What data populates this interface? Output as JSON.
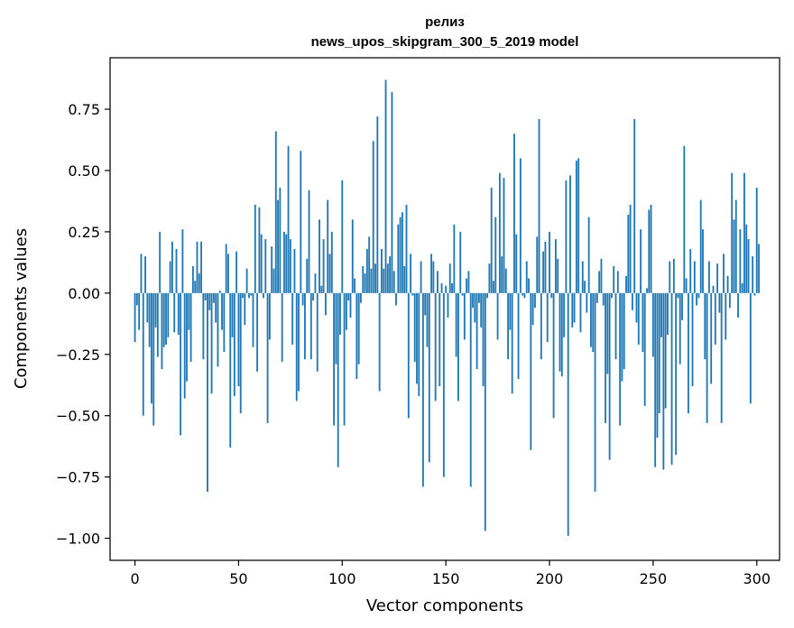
{
  "colors": {
    "bar": "#1f77b4",
    "axis": "#000000",
    "background": "#ffffff"
  },
  "chart_data": {
    "type": "bar",
    "title_line1": "релиз",
    "title_line2": "news_upos_skipgram_300_5_2019 model",
    "xlabel": "Vector components",
    "ylabel": "Components values",
    "xlim": [
      -12,
      311
    ],
    "ylim": [
      -1.09,
      0.96
    ],
    "grid": false,
    "xticks": [
      0,
      50,
      100,
      150,
      200,
      250,
      300
    ],
    "xtick_labels": [
      "0",
      "50",
      "100",
      "150",
      "200",
      "250",
      "300"
    ],
    "yticks": [
      -1.0,
      -0.75,
      -0.5,
      -0.25,
      0.0,
      0.25,
      0.5,
      0.75
    ],
    "ytick_labels": [
      "−1.00",
      "−0.75",
      "−0.50",
      "−0.25",
      "0.00",
      "0.25",
      "0.50",
      "0.75"
    ],
    "values": [
      -0.2,
      -0.05,
      -0.15,
      0.16,
      -0.5,
      0.15,
      -0.12,
      -0.22,
      -0.45,
      -0.54,
      -0.14,
      -0.26,
      0.25,
      -0.31,
      -0.22,
      -0.21,
      -0.18,
      0.13,
      0.21,
      -0.16,
      0.18,
      -0.17,
      -0.58,
      0.26,
      -0.43,
      -0.36,
      -0.15,
      -0.28,
      0.11,
      0.05,
      0.21,
      0.08,
      0.21,
      -0.27,
      -0.03,
      -0.81,
      -0.07,
      -0.41,
      -0.04,
      -0.12,
      -0.3,
      0.01,
      -0.15,
      -0.24,
      0.2,
      0.16,
      -0.63,
      -0.18,
      -0.42,
      0.17,
      -0.38,
      -0.49,
      -0.02,
      -0.13,
      0.1,
      -0.02,
      -0.01,
      -0.22,
      0.36,
      -0.32,
      0.35,
      0.24,
      -0.02,
      0.22,
      -0.53,
      -0.19,
      0.19,
      0.1,
      0.66,
      0.38,
      0.43,
      -0.28,
      0.25,
      0.24,
      0.6,
      0.22,
      -0.21,
      0.18,
      -0.44,
      -0.4,
      0.58,
      -0.05,
      -0.27,
      0.14,
      0.42,
      -0.27,
      -0.03,
      0.08,
      -0.32,
      0.3,
      0.03,
      0.22,
      -0.09,
      0.38,
      0.16,
      0.25,
      -0.54,
      -0.29,
      -0.71,
      -0.17,
      0.46,
      -0.54,
      -0.15,
      -0.03,
      -0.1,
      0.3,
      0.06,
      -0.35,
      -0.29,
      -0.04,
      0.11,
      0.08,
      0.18,
      0.23,
      0.1,
      0.62,
      0.12,
      0.72,
      -0.4,
      0.18,
      0.1,
      0.87,
      0.12,
      0.15,
      0.82,
      0.09,
      -0.05,
      0.28,
      0.31,
      0.33,
      0.11,
      0.36,
      -0.51,
      0.16,
      -0.01,
      -0.28,
      -0.37,
      -0.42,
      0.13,
      -0.79,
      -0.09,
      -0.22,
      -0.69,
      0.16,
      0.13,
      -0.44,
      0.09,
      -0.38,
      0.04,
      -0.75,
      0.03,
      -0.1,
      0.12,
      0.04,
      0.28,
      -0.26,
      -0.44,
      0.25,
      -0.01,
      -0.19,
      0.06,
      0.09,
      -0.79,
      -0.06,
      -0.12,
      -0.31,
      -0.04,
      -0.14,
      -0.38,
      -0.97,
      -0.02,
      0.12,
      0.43,
      0.05,
      0.31,
      -0.19,
      0.49,
      0.15,
      0.47,
      0.1,
      -0.27,
      -0.15,
      -0.41,
      0.65,
      0.24,
      -0.35,
      0.55,
      -0.01,
      -0.02,
      0.13,
      0.06,
      -0.64,
      -0.13,
      -0.06,
      0.23,
      0.71,
      -0.27,
      0.17,
      0.21,
      -0.2,
      0.25,
      -0.02,
      -0.51,
      0.22,
      0.14,
      -0.32,
      -0.34,
      -0.18,
      0.46,
      -0.99,
      0.48,
      -0.14,
      -0.12,
      0.54,
      0.55,
      -0.16,
      0.13,
      0.05,
      -0.08,
      0.31,
      -0.22,
      -0.24,
      -0.81,
      -0.04,
      0.09,
      0.14,
      -0.05,
      -0.53,
      -0.33,
      -0.68,
      -0.02,
      0.11,
      -0.27,
      0.09,
      -0.54,
      -0.36,
      -0.31,
      0.07,
      0.32,
      0.36,
      -0.07,
      0.71,
      -0.12,
      -0.21,
      0.26,
      -0.24,
      -0.46,
      0.02,
      0.34,
      0.36,
      -0.26,
      -0.71,
      -0.59,
      -0.49,
      -0.18,
      -0.72,
      -0.47,
      -0.17,
      0.13,
      -0.7,
      0.14,
      -0.66,
      -0.02,
      -0.29,
      -0.11,
      0.6,
      0.06,
      -0.49,
      0.18,
      -0.38,
      0.13,
      -0.05,
      -0.02,
      0.38,
      0.26,
      -0.27,
      -0.53,
      0.13,
      -0.37,
      0.03,
      -0.21,
      0.12,
      -0.08,
      -0.53,
      0.16,
      -0.19,
      0.07,
      -0.06,
      0.49,
      0.3,
      0.38,
      -0.1,
      0.26,
      0.04,
      0.49,
      0.28,
      0.22,
      -0.45,
      0.15,
      -0.01,
      0.43,
      0.2
    ]
  }
}
